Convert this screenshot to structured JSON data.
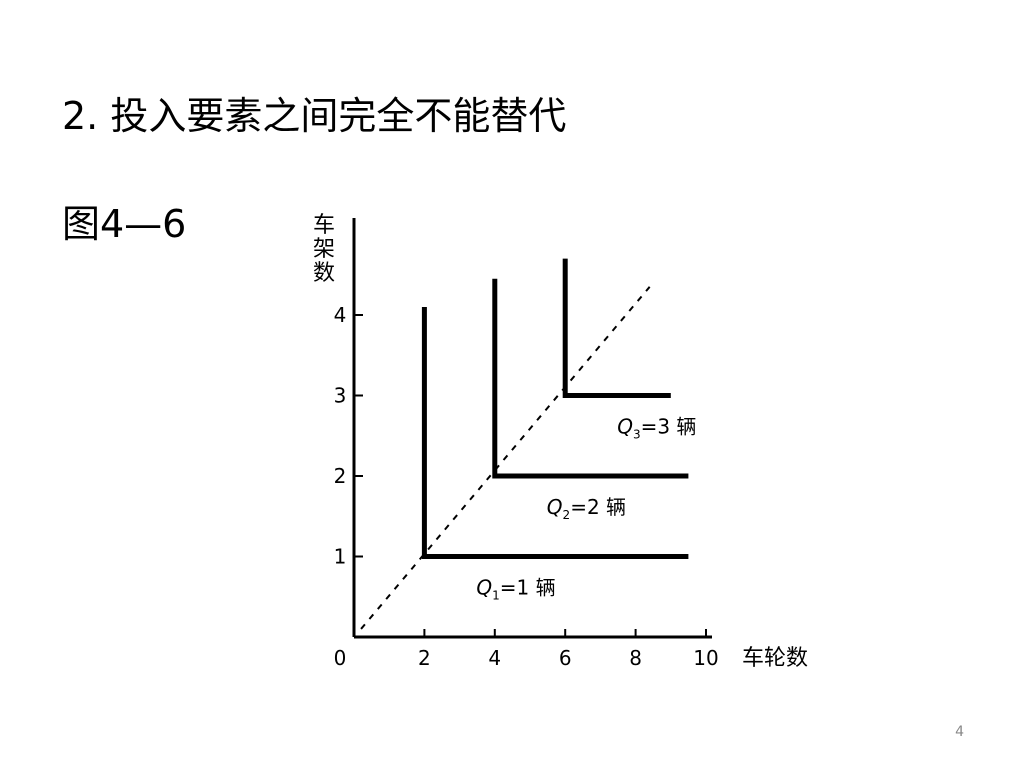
{
  "slide": {
    "heading": "2.  投入要素之间完全不能替代",
    "figure_label": "图4—6",
    "page_number": "4"
  },
  "chart_data": {
    "type": "line",
    "xlabel": "车轮数",
    "ylabel": "车架数",
    "x_ticks": [
      "0",
      "2",
      "4",
      "6",
      "8",
      "10"
    ],
    "y_ticks": [
      "1",
      "2",
      "3",
      "4"
    ],
    "xlim": [
      0,
      10
    ],
    "ylim": [
      0,
      5
    ],
    "series": [
      {
        "name": "Q1=1 辆",
        "label_main": "Q",
        "label_sub": "1",
        "label_rest": "=1 辆",
        "corner": [
          2,
          1
        ],
        "points": [
          [
            2,
            4.1
          ],
          [
            2,
            1
          ],
          [
            9.5,
            1
          ]
        ]
      },
      {
        "name": "Q2=2 辆",
        "label_main": "Q",
        "label_sub": "2",
        "label_rest": "=2 辆",
        "corner": [
          4,
          2
        ],
        "points": [
          [
            4,
            4.45
          ],
          [
            4,
            2
          ],
          [
            9.5,
            2
          ]
        ]
      },
      {
        "name": "Q3=3 辆",
        "label_main": "Q",
        "label_sub": "3",
        "label_rest": "=3 辆",
        "corner": [
          6,
          3
        ],
        "points": [
          [
            6,
            4.7
          ],
          [
            6,
            3
          ],
          [
            9.0,
            3
          ]
        ]
      }
    ],
    "expansion_path": [
      [
        0.2,
        0.1
      ],
      [
        8.4,
        4.35
      ]
    ],
    "colors": {
      "lines": "#000000",
      "axis": "#000000"
    }
  }
}
